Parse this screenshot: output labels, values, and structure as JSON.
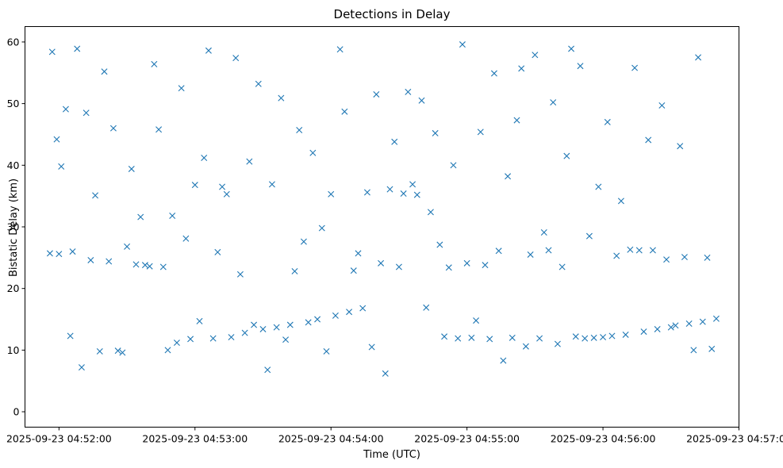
{
  "colors": {
    "marker": "#1f77b4",
    "axes": "#000000",
    "background": "#ffffff"
  },
  "chart_data": {
    "type": "scatter",
    "title": "Detections in Delay",
    "xlabel": "Time (UTC)",
    "ylabel": "Bistatic Delay (km)",
    "marker": "x",
    "grid": false,
    "legend": "none",
    "xlim": [
      "2025-09-23 04:51:45",
      "2025-09-23 04:57:00"
    ],
    "ylim": [
      -2.5,
      62.5
    ],
    "xticks": [
      "2025-09-23 04:52:00",
      "2025-09-23 04:53:00",
      "2025-09-23 04:54:00",
      "2025-09-23 04:55:00",
      "2025-09-23 04:56:00",
      "2025-09-23 04:57:00"
    ],
    "yticks": [
      0,
      10,
      20,
      30,
      40,
      50,
      60
    ],
    "series": [
      {
        "x": [
          "2025-09-23 04:51:56",
          "2025-09-23 04:51:57",
          "2025-09-23 04:51:59",
          "2025-09-23 04:52:00",
          "2025-09-23 04:52:01",
          "2025-09-23 04:52:03",
          "2025-09-23 04:52:05",
          "2025-09-23 04:52:06",
          "2025-09-23 04:52:08",
          "2025-09-23 04:52:10",
          "2025-09-23 04:52:12",
          "2025-09-23 04:52:14",
          "2025-09-23 04:52:16",
          "2025-09-23 04:52:18",
          "2025-09-23 04:52:20",
          "2025-09-23 04:52:22",
          "2025-09-23 04:52:24",
          "2025-09-23 04:52:26",
          "2025-09-23 04:52:28",
          "2025-09-23 04:52:30",
          "2025-09-23 04:52:32",
          "2025-09-23 04:52:34",
          "2025-09-23 04:52:36",
          "2025-09-23 04:52:38",
          "2025-09-23 04:52:40",
          "2025-09-23 04:52:42",
          "2025-09-23 04:52:44",
          "2025-09-23 04:52:46",
          "2025-09-23 04:52:48",
          "2025-09-23 04:52:50",
          "2025-09-23 04:52:52",
          "2025-09-23 04:52:54",
          "2025-09-23 04:52:56",
          "2025-09-23 04:52:58",
          "2025-09-23 04:53:00",
          "2025-09-23 04:53:02",
          "2025-09-23 04:53:04",
          "2025-09-23 04:53:06",
          "2025-09-23 04:53:08",
          "2025-09-23 04:53:10",
          "2025-09-23 04:53:12",
          "2025-09-23 04:53:14",
          "2025-09-23 04:53:16",
          "2025-09-23 04:53:18",
          "2025-09-23 04:53:20",
          "2025-09-23 04:53:22",
          "2025-09-23 04:53:24",
          "2025-09-23 04:53:26",
          "2025-09-23 04:53:28",
          "2025-09-23 04:53:30",
          "2025-09-23 04:53:32",
          "2025-09-23 04:53:34",
          "2025-09-23 04:53:36",
          "2025-09-23 04:53:38",
          "2025-09-23 04:53:40",
          "2025-09-23 04:53:42",
          "2025-09-23 04:53:44",
          "2025-09-23 04:53:46",
          "2025-09-23 04:53:48",
          "2025-09-23 04:53:50",
          "2025-09-23 04:53:52",
          "2025-09-23 04:53:54",
          "2025-09-23 04:53:56",
          "2025-09-23 04:53:58",
          "2025-09-23 04:54:00",
          "2025-09-23 04:54:02",
          "2025-09-23 04:54:04",
          "2025-09-23 04:54:06",
          "2025-09-23 04:54:08",
          "2025-09-23 04:54:10",
          "2025-09-23 04:54:12",
          "2025-09-23 04:54:14",
          "2025-09-23 04:54:16",
          "2025-09-23 04:54:18",
          "2025-09-23 04:54:20",
          "2025-09-23 04:54:22",
          "2025-09-23 04:54:24",
          "2025-09-23 04:54:26",
          "2025-09-23 04:54:28",
          "2025-09-23 04:54:30",
          "2025-09-23 04:54:32",
          "2025-09-23 04:54:34",
          "2025-09-23 04:54:36",
          "2025-09-23 04:54:38",
          "2025-09-23 04:54:40",
          "2025-09-23 04:54:42",
          "2025-09-23 04:54:44",
          "2025-09-23 04:54:46",
          "2025-09-23 04:54:48",
          "2025-09-23 04:54:50",
          "2025-09-23 04:54:52",
          "2025-09-23 04:54:54",
          "2025-09-23 04:54:56",
          "2025-09-23 04:54:58",
          "2025-09-23 04:55:00",
          "2025-09-23 04:55:02",
          "2025-09-23 04:55:04",
          "2025-09-23 04:55:06",
          "2025-09-23 04:55:08",
          "2025-09-23 04:55:10",
          "2025-09-23 04:55:12",
          "2025-09-23 04:55:14",
          "2025-09-23 04:55:16",
          "2025-09-23 04:55:18",
          "2025-09-23 04:55:20",
          "2025-09-23 04:55:22",
          "2025-09-23 04:55:24",
          "2025-09-23 04:55:26",
          "2025-09-23 04:55:28",
          "2025-09-23 04:55:30",
          "2025-09-23 04:55:32",
          "2025-09-23 04:55:34",
          "2025-09-23 04:55:36",
          "2025-09-23 04:55:38",
          "2025-09-23 04:55:40",
          "2025-09-23 04:55:42",
          "2025-09-23 04:55:44",
          "2025-09-23 04:55:46",
          "2025-09-23 04:55:48",
          "2025-09-23 04:55:50",
          "2025-09-23 04:55:52",
          "2025-09-23 04:55:54",
          "2025-09-23 04:55:56",
          "2025-09-23 04:55:58",
          "2025-09-23 04:56:00",
          "2025-09-23 04:56:02",
          "2025-09-23 04:56:04",
          "2025-09-23 04:56:06",
          "2025-09-23 04:56:08",
          "2025-09-23 04:56:10",
          "2025-09-23 04:56:12",
          "2025-09-23 04:56:14",
          "2025-09-23 04:56:16",
          "2025-09-23 04:56:18",
          "2025-09-23 04:56:20",
          "2025-09-23 04:56:22",
          "2025-09-23 04:56:24",
          "2025-09-23 04:56:26",
          "2025-09-23 04:56:28",
          "2025-09-23 04:56:30",
          "2025-09-23 04:56:32",
          "2025-09-23 04:56:34",
          "2025-09-23 04:56:36",
          "2025-09-23 04:56:38",
          "2025-09-23 04:56:40",
          "2025-09-23 04:56:42",
          "2025-09-23 04:56:44",
          "2025-09-23 04:56:46",
          "2025-09-23 04:56:48",
          "2025-09-23 04:56:50"
        ],
        "y": [
          25.7,
          58.4,
          44.2,
          25.6,
          39.8,
          49.1,
          12.3,
          26.0,
          58.9,
          7.2,
          48.5,
          24.6,
          35.1,
          9.8,
          55.2,
          24.4,
          46.0,
          9.9,
          9.6,
          26.8,
          39.4,
          23.9,
          31.6,
          23.8,
          23.6,
          56.4,
          45.8,
          23.5,
          10.0,
          31.8,
          11.2,
          52.5,
          28.1,
          11.8,
          36.8,
          14.7,
          41.2,
          58.6,
          11.9,
          25.9,
          36.5,
          35.3,
          12.1,
          57.4,
          22.3,
          12.8,
          40.6,
          14.1,
          53.2,
          13.4,
          6.8,
          36.9,
          13.7,
          50.9,
          11.7,
          14.1,
          22.8,
          45.7,
          27.6,
          14.5,
          42.0,
          15.0,
          29.8,
          9.8,
          35.3,
          15.6,
          58.8,
          48.7,
          16.2,
          22.9,
          25.7,
          16.8,
          35.6,
          10.5,
          51.5,
          24.1,
          6.2,
          36.1,
          43.8,
          23.5,
          35.4,
          51.9,
          36.9,
          35.2,
          50.5,
          16.9,
          32.4,
          45.2,
          27.1,
          12.2,
          23.4,
          40.0,
          11.9,
          59.6,
          24.1,
          12.0,
          14.8,
          45.4,
          23.8,
          11.8,
          54.9,
          26.1,
          8.3,
          38.2,
          12.0,
          47.3,
          55.7,
          10.6,
          25.5,
          57.9,
          11.9,
          29.1,
          26.2,
          50.2,
          11.0,
          23.5,
          41.5,
          58.9,
          12.2,
          56.1,
          11.9,
          28.5,
          12.0,
          36.5,
          12.1,
          47.0,
          12.3,
          25.3,
          34.2,
          12.5,
          26.3,
          55.8,
          26.2,
          13.0,
          44.1,
          26.2,
          13.4,
          49.7,
          24.7,
          13.7,
          14.0,
          43.1,
          25.1,
          14.3,
          10.0,
          57.5,
          14.6,
          25.0,
          10.2,
          15.1
        ]
      }
    ]
  }
}
